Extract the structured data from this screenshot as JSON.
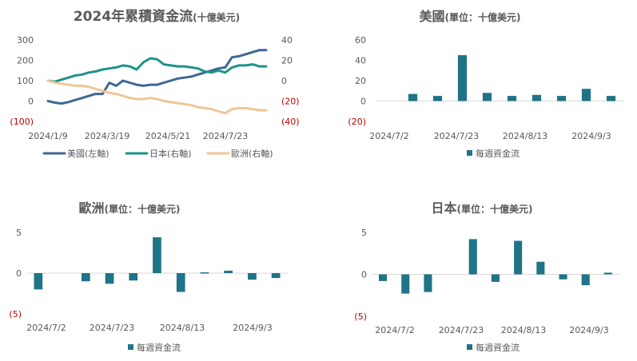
{
  "chart_data": [
    {
      "id": "cumulative",
      "type": "line",
      "title": "2024年累積資金流",
      "subtitle": "(十億美元)",
      "x_tick_labels": [
        "2024/1/9",
        "2024/3/19",
        "2024/5/21",
        "2024/7/23"
      ],
      "left_axis": {
        "ylim": [
          -100,
          300
        ],
        "ticks": [
          "(100)",
          "0",
          "100",
          "200",
          "300"
        ]
      },
      "right_axis": {
        "ylim": [
          -40,
          40
        ],
        "ticks": [
          "(40)",
          "(20)",
          "0",
          "20",
          "40"
        ]
      },
      "series": [
        {
          "name": "美國(左軸)",
          "axis": "left",
          "color": "#3f6796",
          "values": [
            0,
            -8,
            -12,
            -5,
            5,
            15,
            25,
            35,
            35,
            90,
            75,
            100,
            90,
            80,
            75,
            80,
            80,
            90,
            100,
            110,
            115,
            120,
            130,
            140,
            150,
            160,
            165,
            215,
            220,
            230,
            240,
            250,
            250
          ]
        },
        {
          "name": "日本(右軸)",
          "axis": "right",
          "color": "#1e9389",
          "values": [
            0,
            -1,
            1,
            3,
            5,
            6,
            8,
            9,
            11,
            12,
            13,
            15,
            14,
            11,
            18,
            22,
            21,
            16,
            15,
            14,
            14,
            13,
            12,
            9,
            8,
            10,
            8,
            13,
            15,
            15,
            16,
            14,
            14
          ]
        },
        {
          "name": "歐洲(右軸)",
          "axis": "right",
          "color": "#eec697",
          "values": [
            0,
            -2,
            -3,
            -4,
            -5,
            -5,
            -6,
            -8,
            -10,
            -12,
            -13,
            -15,
            -17,
            -18,
            -18,
            -17,
            -18,
            -20,
            -21,
            -22,
            -23,
            -24,
            -26,
            -27,
            -28,
            -30,
            -32,
            -28,
            -27,
            -27,
            -28,
            -29,
            -29
          ]
        }
      ]
    },
    {
      "id": "us",
      "type": "bar",
      "title": "美國",
      "subtitle": "(單位：十億美元)",
      "ylim": [
        -20,
        60
      ],
      "y_ticks": [
        "(20)",
        "0",
        "20",
        "40",
        "60"
      ],
      "x_tick_labels": [
        "2024/7/2",
        "2024/7/23",
        "2024/8/13",
        "2024/9/3"
      ],
      "legend": "每週資金流",
      "values": [
        null,
        7,
        5,
        45,
        8,
        5,
        6,
        5,
        12,
        5
      ]
    },
    {
      "id": "eu",
      "type": "bar",
      "title": "歐洲",
      "subtitle": "(單位：十億美元)",
      "ylim": [
        -5,
        5
      ],
      "y_ticks": [
        "(5)",
        "0",
        "5"
      ],
      "x_tick_labels": [
        "2024/7/2",
        "2024/7/23",
        "2024/8/13",
        "2024/9/3"
      ],
      "legend": "每週資金流",
      "values": [
        -2.0,
        null,
        -1.0,
        -1.3,
        -0.9,
        4.4,
        -2.3,
        0.1,
        0.3,
        -0.8,
        -0.6
      ]
    },
    {
      "id": "jp",
      "type": "bar",
      "title": "日本",
      "subtitle": "(單位：十億美元)",
      "ylim": [
        -5,
        5
      ],
      "y_ticks": [
        "(5)",
        "0",
        "5"
      ],
      "x_tick_labels": [
        "2024/7/2",
        "2024/7/23",
        "2024/8/13",
        "2024/9/3"
      ],
      "legend": "每週資金流",
      "values": [
        -0.8,
        -2.3,
        -2.1,
        null,
        4.2,
        -0.9,
        4.0,
        1.5,
        -0.6,
        -1.3,
        0.2
      ]
    }
  ],
  "colors": {
    "axis_text": "#595959",
    "negative_text": "#c00000",
    "bar": "#1f7488",
    "grid": "#d9d9d9"
  }
}
